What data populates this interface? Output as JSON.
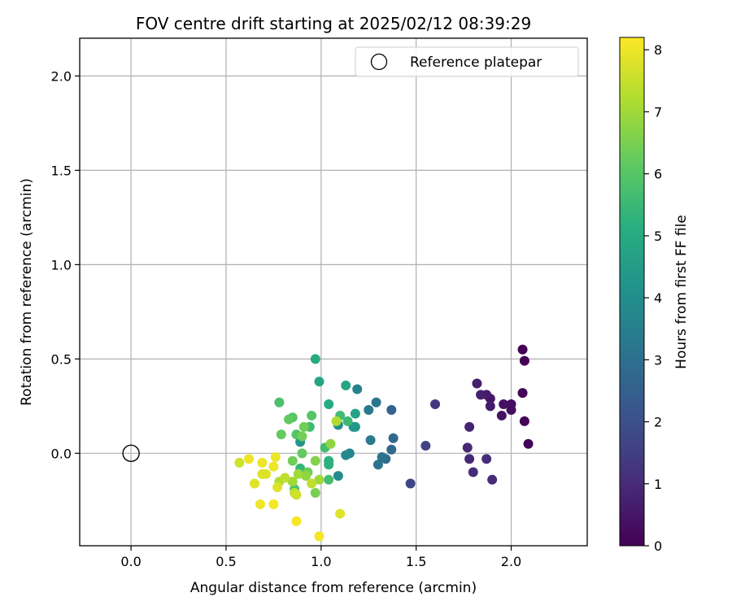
{
  "chart_data": {
    "type": "scatter",
    "title": "FOV centre drift starting at 2025/02/12 08:39:29",
    "xlabel": "Angular distance from reference (arcmin)",
    "ylabel": "Rotation from reference (arcmin)",
    "xlim": [
      -0.27,
      2.4
    ],
    "ylim": [
      -0.49,
      2.2
    ],
    "xticks": [
      "0.0",
      "0.5",
      "1.0",
      "1.5",
      "2.0"
    ],
    "yticks": [
      "0.0",
      "0.5",
      "1.0",
      "1.5",
      "2.0"
    ],
    "grid": true,
    "legend": {
      "position": "top-right",
      "label": "Reference platepar"
    },
    "reference_point": {
      "x": 0.0,
      "y": 0.0
    },
    "colorbar": {
      "label": "Hours from first FF file",
      "range": [
        0,
        8.2
      ],
      "ticks": [
        "0",
        "1",
        "2",
        "3",
        "4",
        "5",
        "6",
        "7",
        "8"
      ],
      "colormap": "viridis"
    },
    "points": [
      {
        "x": 2.06,
        "y": 0.55,
        "c": 0.0
      },
      {
        "x": 2.07,
        "y": 0.49,
        "c": 0.0
      },
      {
        "x": 2.06,
        "y": 0.32,
        "c": 0.1
      },
      {
        "x": 2.07,
        "y": 0.17,
        "c": 0.1
      },
      {
        "x": 2.09,
        "y": 0.05,
        "c": 0.1
      },
      {
        "x": 2.0,
        "y": 0.26,
        "c": 0.3
      },
      {
        "x": 2.0,
        "y": 0.23,
        "c": 0.3
      },
      {
        "x": 1.96,
        "y": 0.26,
        "c": 0.4
      },
      {
        "x": 1.95,
        "y": 0.2,
        "c": 0.4
      },
      {
        "x": 1.89,
        "y": 0.29,
        "c": 0.5
      },
      {
        "x": 1.89,
        "y": 0.25,
        "c": 0.6
      },
      {
        "x": 1.87,
        "y": 0.31,
        "c": 0.6
      },
      {
        "x": 1.82,
        "y": 0.37,
        "c": 0.7
      },
      {
        "x": 1.84,
        "y": 0.31,
        "c": 0.7
      },
      {
        "x": 1.78,
        "y": 0.14,
        "c": 0.8
      },
      {
        "x": 1.77,
        "y": 0.03,
        "c": 0.9
      },
      {
        "x": 1.78,
        "y": -0.03,
        "c": 0.9
      },
      {
        "x": 1.8,
        "y": -0.1,
        "c": 1.0
      },
      {
        "x": 1.87,
        "y": -0.03,
        "c": 1.0
      },
      {
        "x": 1.9,
        "y": -0.14,
        "c": 1.0
      },
      {
        "x": 1.6,
        "y": 0.26,
        "c": 1.3
      },
      {
        "x": 1.55,
        "y": 0.04,
        "c": 1.6
      },
      {
        "x": 1.47,
        "y": -0.16,
        "c": 1.7
      },
      {
        "x": 1.37,
        "y": 0.23,
        "c": 2.6
      },
      {
        "x": 1.38,
        "y": 0.08,
        "c": 2.8
      },
      {
        "x": 1.37,
        "y": 0.02,
        "c": 2.8
      },
      {
        "x": 1.34,
        "y": -0.03,
        "c": 2.9
      },
      {
        "x": 1.32,
        "y": -0.02,
        "c": 3.1
      },
      {
        "x": 1.3,
        "y": -0.06,
        "c": 3.1
      },
      {
        "x": 1.29,
        "y": 0.27,
        "c": 3.2
      },
      {
        "x": 1.25,
        "y": 0.23,
        "c": 3.3
      },
      {
        "x": 1.26,
        "y": 0.07,
        "c": 3.4
      },
      {
        "x": 1.19,
        "y": 0.34,
        "c": 3.6
      },
      {
        "x": 1.15,
        "y": 0.0,
        "c": 3.7
      },
      {
        "x": 1.13,
        "y": -0.01,
        "c": 3.8
      },
      {
        "x": 1.09,
        "y": -0.12,
        "c": 3.9
      },
      {
        "x": 1.09,
        "y": 0.15,
        "c": 4.0
      },
      {
        "x": 1.17,
        "y": 0.14,
        "c": 4.2
      },
      {
        "x": 1.18,
        "y": 0.14,
        "c": 4.3
      },
      {
        "x": 0.89,
        "y": 0.06,
        "c": 4.3
      },
      {
        "x": 1.18,
        "y": 0.21,
        "c": 4.7
      },
      {
        "x": 1.13,
        "y": 0.36,
        "c": 4.8
      },
      {
        "x": 0.99,
        "y": 0.38,
        "c": 4.8
      },
      {
        "x": 0.97,
        "y": 0.5,
        "c": 5.0
      },
      {
        "x": 1.04,
        "y": 0.26,
        "c": 5.0
      },
      {
        "x": 1.04,
        "y": -0.06,
        "c": 5.2
      },
      {
        "x": 1.04,
        "y": -0.04,
        "c": 5.2
      },
      {
        "x": 0.89,
        "y": -0.08,
        "c": 5.4
      },
      {
        "x": 1.14,
        "y": 0.17,
        "c": 5.5
      },
      {
        "x": 1.1,
        "y": 0.2,
        "c": 5.6
      },
      {
        "x": 0.94,
        "y": 0.14,
        "c": 5.6
      },
      {
        "x": 1.02,
        "y": 0.03,
        "c": 5.7
      },
      {
        "x": 1.04,
        "y": -0.14,
        "c": 5.7
      },
      {
        "x": 0.78,
        "y": 0.27,
        "c": 5.8
      },
      {
        "x": 0.86,
        "y": -0.19,
        "c": 5.8
      },
      {
        "x": 0.95,
        "y": 0.2,
        "c": 6.0
      },
      {
        "x": 0.87,
        "y": 0.1,
        "c": 6.0
      },
      {
        "x": 0.85,
        "y": 0.19,
        "c": 6.0
      },
      {
        "x": 0.83,
        "y": 0.18,
        "c": 6.2
      },
      {
        "x": 0.79,
        "y": 0.1,
        "c": 6.2
      },
      {
        "x": 0.9,
        "y": 0.0,
        "c": 6.2
      },
      {
        "x": 0.91,
        "y": 0.14,
        "c": 6.4
      },
      {
        "x": 0.9,
        "y": 0.09,
        "c": 6.4
      },
      {
        "x": 0.85,
        "y": -0.04,
        "c": 6.4
      },
      {
        "x": 0.93,
        "y": -0.1,
        "c": 6.4
      },
      {
        "x": 0.97,
        "y": -0.21,
        "c": 6.5
      },
      {
        "x": 0.97,
        "y": -0.04,
        "c": 6.6
      },
      {
        "x": 1.05,
        "y": 0.05,
        "c": 6.8
      },
      {
        "x": 0.92,
        "y": -0.12,
        "c": 6.8
      },
      {
        "x": 0.88,
        "y": -0.11,
        "c": 7.0
      },
      {
        "x": 0.85,
        "y": -0.15,
        "c": 7.0
      },
      {
        "x": 0.99,
        "y": -0.14,
        "c": 7.0
      },
      {
        "x": 1.08,
        "y": 0.17,
        "c": 7.2
      },
      {
        "x": 0.78,
        "y": -0.15,
        "c": 7.2
      },
      {
        "x": 0.95,
        "y": -0.16,
        "c": 7.4
      },
      {
        "x": 0.81,
        "y": -0.13,
        "c": 7.4
      },
      {
        "x": 0.86,
        "y": -0.21,
        "c": 7.5
      },
      {
        "x": 0.87,
        "y": -0.22,
        "c": 7.6
      },
      {
        "x": 0.57,
        "y": -0.05,
        "c": 7.6
      },
      {
        "x": 0.71,
        "y": -0.11,
        "c": 7.8
      },
      {
        "x": 0.65,
        "y": -0.16,
        "c": 7.8
      },
      {
        "x": 0.69,
        "y": -0.11,
        "c": 7.8
      },
      {
        "x": 0.77,
        "y": -0.18,
        "c": 7.8
      },
      {
        "x": 1.1,
        "y": -0.32,
        "c": 7.8
      },
      {
        "x": 0.69,
        "y": -0.05,
        "c": 8.0
      },
      {
        "x": 0.62,
        "y": -0.03,
        "c": 8.0
      },
      {
        "x": 0.76,
        "y": -0.02,
        "c": 8.0
      },
      {
        "x": 0.75,
        "y": -0.07,
        "c": 8.0
      },
      {
        "x": 0.68,
        "y": -0.27,
        "c": 8.0
      },
      {
        "x": 0.75,
        "y": -0.27,
        "c": 8.1
      },
      {
        "x": 0.87,
        "y": -0.36,
        "c": 8.1
      },
      {
        "x": 0.99,
        "y": -0.44,
        "c": 8.1
      }
    ]
  }
}
